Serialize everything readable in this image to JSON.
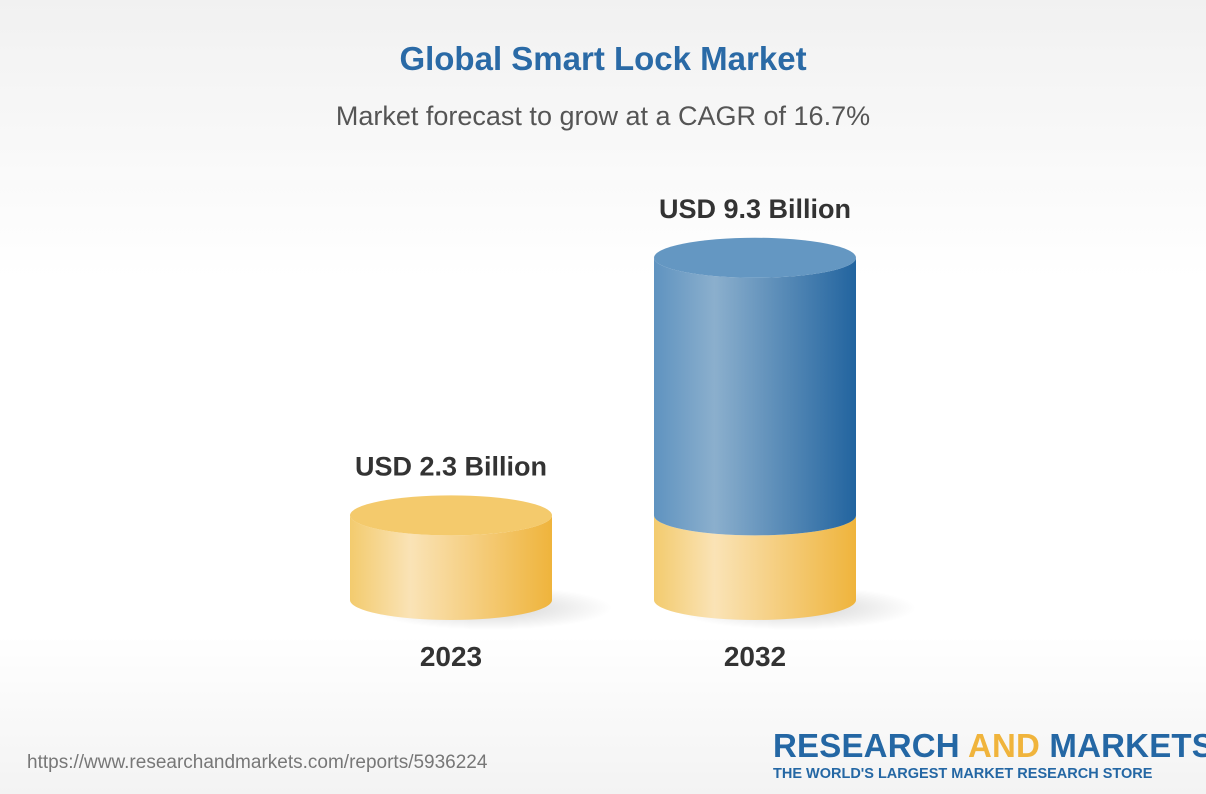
{
  "chart_data": {
    "type": "bar",
    "style": "3d-cylinder",
    "title": "Global Smart Lock Market",
    "subtitle": "Market forecast to grow at a CAGR of 16.7%",
    "categories": [
      "2023",
      "2032"
    ],
    "values": [
      2.3,
      9.3
    ],
    "data_labels": [
      "USD 2.3 Billion",
      "USD 9.3 Billion"
    ],
    "unit": "USD Billion",
    "grid": false,
    "colors": {
      "base": "#f0c060",
      "growth": "#2d6fa8"
    }
  },
  "footer": {
    "url": "https://www.researchandmarkets.com/reports/5936224",
    "logo": {
      "part1": "RESEARCH ",
      "part2": "AND",
      "part3": " MARKETS",
      "tagline": "THE WORLD'S LARGEST MARKET RESEARCH STORE"
    }
  }
}
